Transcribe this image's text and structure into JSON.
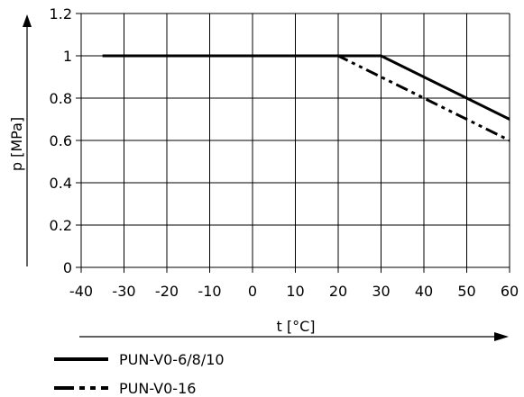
{
  "chart_data": {
    "type": "line",
    "title": "",
    "xlabel": "t [°C]",
    "ylabel": "p [MPa]",
    "xlim": [
      -40,
      60
    ],
    "ylim": [
      0,
      1.2
    ],
    "grid": true,
    "legend_placement": "bottom-left",
    "x_ticks": [
      -40,
      -30,
      -20,
      -10,
      0,
      10,
      20,
      30,
      40,
      50,
      60
    ],
    "x_tick_labels": [
      "-40",
      "-30",
      "-20",
      "-10",
      "0",
      "10",
      "20",
      "30",
      "40",
      "50",
      "60"
    ],
    "y_ticks": [
      0,
      0.2,
      0.4,
      0.6,
      0.8,
      1.0,
      1.2
    ],
    "y_tick_labels": [
      "0",
      "0.2",
      "0.4",
      "0.6",
      "0.8",
      "1",
      "1.2"
    ],
    "series": [
      {
        "name": "PUN-V0-6/8/10",
        "style": "solid",
        "color": "#000000",
        "x": [
          -35,
          30,
          60
        ],
        "y": [
          1.0,
          1.0,
          0.7
        ]
      },
      {
        "name": "PUN-V0-16",
        "style": "dash-dot-dot",
        "color": "#000000",
        "x": [
          -35,
          20,
          60
        ],
        "y": [
          1.0,
          1.0,
          0.6
        ]
      }
    ]
  }
}
